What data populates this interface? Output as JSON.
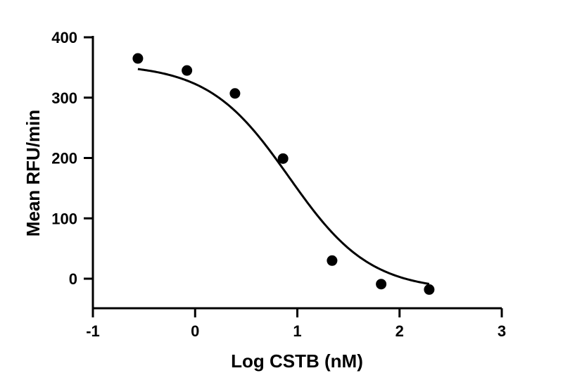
{
  "chart_data": {
    "type": "scatter",
    "title": "",
    "xlabel": "Log CSTB (nM)",
    "ylabel": "Mean RFU/min",
    "xlim": [
      -1,
      3
    ],
    "ylim": [
      -50,
      400
    ],
    "x_ticks": [
      -1,
      0,
      1,
      2,
      3
    ],
    "y_ticks": [
      0,
      100,
      200,
      300,
      400
    ],
    "x_tick_labels": [
      "-1",
      "0",
      "1",
      "2",
      "3"
    ],
    "y_tick_labels": [
      "0",
      "100",
      "200",
      "300",
      "400"
    ],
    "grid": false,
    "legend": "none",
    "series": [
      {
        "type": "scatter",
        "color": "#000000",
        "x": [
          -0.56,
          -0.08,
          0.39,
          0.86,
          1.34,
          1.82,
          2.29
        ],
        "y": [
          365,
          345,
          307,
          199,
          30,
          -9,
          -18
        ]
      },
      {
        "type": "line",
        "fit": "4-parameter logistic",
        "color": "#000000",
        "top": 356,
        "bottom": -20,
        "log_ic50": 0.92,
        "hill_slope": -1.1,
        "x_range": [
          -0.56,
          2.29
        ]
      }
    ]
  }
}
